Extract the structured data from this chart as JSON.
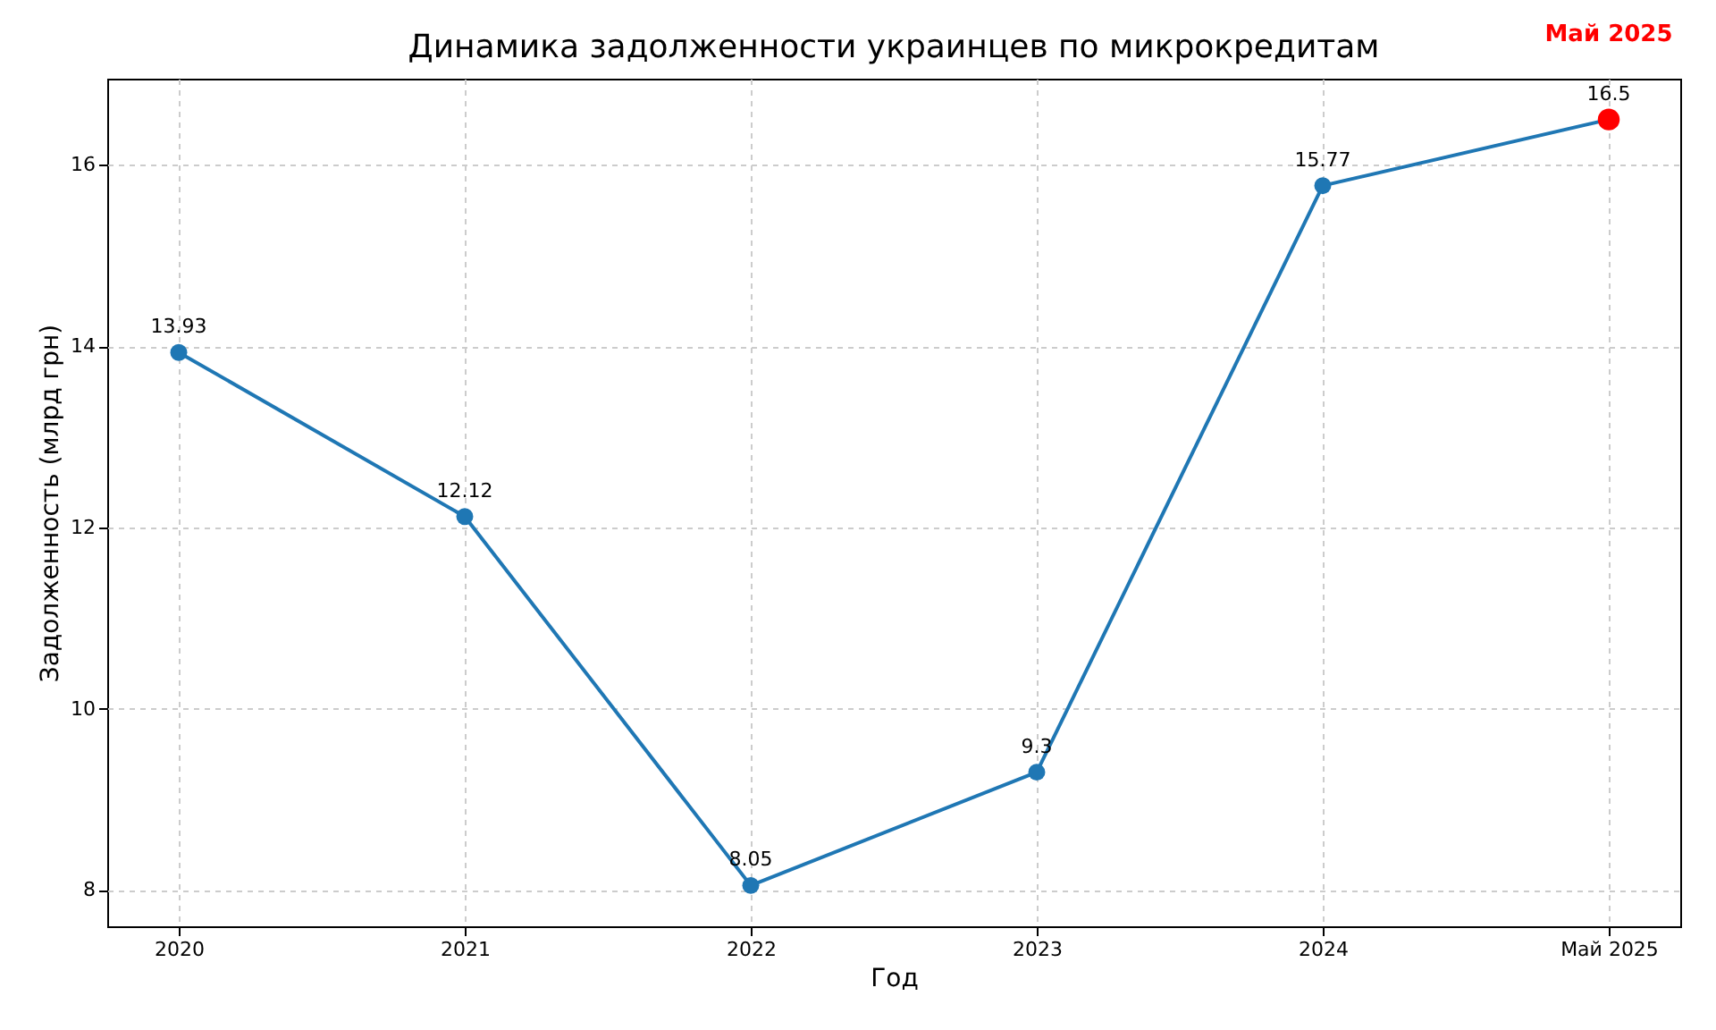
{
  "chart_data": {
    "type": "line",
    "title": "Динамика задолженности украинцев по микрокредитам",
    "xlabel": "Год",
    "ylabel": "Задолженность (млрд грн)",
    "categories": [
      "2020",
      "2021",
      "2022",
      "2023",
      "2024",
      "Май 2025"
    ],
    "series": [
      {
        "color": "#1f77b4",
        "colors": [
          "#1f77b4",
          "#1f77b4",
          "#1f77b4",
          "#1f77b4",
          "#1f77b4",
          "#ff0000"
        ],
        "values": [
          13.93,
          12.12,
          8.05,
          9.3,
          15.77,
          16.5
        ]
      }
    ],
    "ylim": [
      7.6,
      16.95
    ],
    "yticks": [
      8,
      10,
      12,
      14,
      16
    ],
    "grid": true,
    "marker": "circle",
    "line_style": "solid",
    "data_labels": true,
    "annotations": [
      "Май 2025"
    ]
  }
}
